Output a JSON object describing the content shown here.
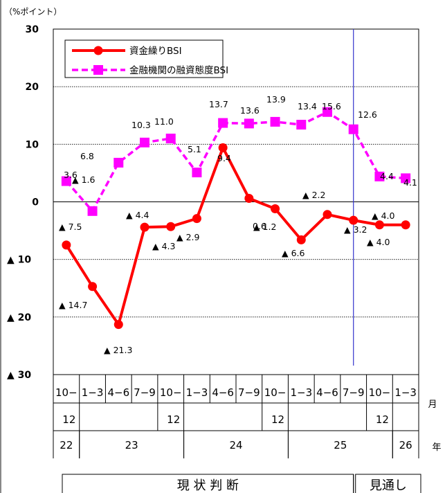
{
  "chart_data": {
    "type": "line",
    "unit_label": "（%ポイント）",
    "y_ticks": [
      "30",
      "20",
      "10",
      "0",
      "▲ 10",
      "▲ 20",
      "▲ 30"
    ],
    "ylim": [
      -30,
      30
    ],
    "grid": true,
    "legend_position": "top-left",
    "categories": [
      {
        "top": "10−",
        "bottom": "12"
      },
      {
        "top": "1−3",
        "bottom": ""
      },
      {
        "top": "4−6",
        "bottom": ""
      },
      {
        "top": "7−9",
        "bottom": ""
      },
      {
        "top": "10−",
        "bottom": "12"
      },
      {
        "top": "1−3",
        "bottom": ""
      },
      {
        "top": "4−6",
        "bottom": ""
      },
      {
        "top": "7−9",
        "bottom": ""
      },
      {
        "top": "10−",
        "bottom": "12"
      },
      {
        "top": "1−3",
        "bottom": ""
      },
      {
        "top": "4−6",
        "bottom": ""
      },
      {
        "top": "7−9",
        "bottom": ""
      },
      {
        "top": "10−",
        "bottom": "12"
      },
      {
        "top": "1−3",
        "bottom": ""
      }
    ],
    "years": [
      {
        "label": "22",
        "start": 0,
        "span": 1
      },
      {
        "label": "23",
        "start": 1,
        "span": 4
      },
      {
        "label": "24",
        "start": 5,
        "span": 4
      },
      {
        "label": "25",
        "start": 9,
        "span": 4
      },
      {
        "label": "26",
        "start": 13,
        "span": 1
      }
    ],
    "month_label": "月",
    "year_label": "年",
    "period_labels": {
      "actual": "現 状 判 断",
      "forecast": "見通し"
    },
    "forecast_start_index": 12,
    "series": [
      {
        "name": "資金繰りBSI",
        "color": "#ff0000",
        "marker": "circle",
        "values": [
          -7.5,
          -14.7,
          -21.3,
          -4.4,
          -4.3,
          -2.9,
          9.4,
          0.6,
          -1.2,
          -6.6,
          -2.2,
          -3.2,
          -4.0,
          -4.0
        ],
        "labels": [
          "▲ 7.5",
          "▲ 14.7",
          "▲ 21.3",
          "▲ 4.4",
          "▲ 4.3",
          "▲ 2.9",
          "9.4",
          "0.6",
          "▲ 1.2",
          "▲ 6.6",
          "▲ 2.2",
          "▲ 3.2",
          "▲ 4.0",
          "▲ 4.0"
        ]
      },
      {
        "name": "金融機関の融資態度BSI",
        "color": "#ff00ff",
        "marker": "square",
        "values": [
          3.6,
          -1.6,
          6.8,
          10.3,
          11.0,
          5.1,
          13.7,
          13.6,
          13.9,
          13.4,
          15.6,
          12.6,
          4.4,
          4.1
        ],
        "labels": [
          "3.6",
          "▲ 1.6",
          "6.8",
          "10.3",
          "11.0",
          "5.1",
          "13.7",
          "13.6",
          "13.9",
          "13.4",
          "15.6",
          "12.6",
          "4.4",
          "4.1"
        ]
      }
    ]
  }
}
